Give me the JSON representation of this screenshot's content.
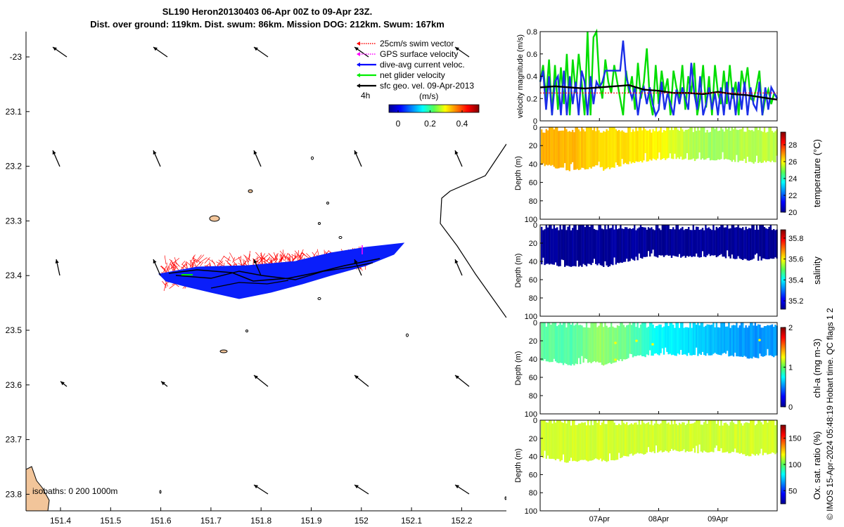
{
  "title": {
    "line1": "SL190 Heron20130403 06-Apr 00Z to 09-Apr 23Z.",
    "line2": "Dist. over ground: 119km. Dist. swum: 86km. Mission DOG: 212km. Swum: 167km"
  },
  "map": {
    "legend": [
      {
        "label": "25cm/s swim vector",
        "color": "#ff0000",
        "style": "dotted"
      },
      {
        "label": "GPS surface velocity",
        "color": "#ff00ff",
        "style": "dotted"
      },
      {
        "label": "dive-avg current veloc.",
        "color": "#0000ff",
        "style": "solid"
      },
      {
        "label": "net glider velocity",
        "color": "#00ee00",
        "style": "solid"
      },
      {
        "label": "sfc geo. vel. 09-Apr-2013",
        "color": "#000000",
        "style": "solid"
      }
    ],
    "scale_label": "4h",
    "colorbar_unit": "(m/s)",
    "colorbar_ticks": [
      "0",
      "0.2",
      "0.4"
    ],
    "isobaths_label": "isobaths: 0   200  1000m",
    "x_ticks": [
      "151.4",
      "151.5",
      "151.6",
      "151.7",
      "151.8",
      "151.9",
      "152",
      "152.1",
      "152.2"
    ],
    "y_ticks": [
      "-23",
      "23.1",
      "23.2",
      "23.3",
      "23.4",
      "23.5",
      "23.6",
      "23.7",
      "23.8"
    ]
  },
  "chart_data": [
    {
      "type": "line",
      "title": "",
      "ylabel": "velocity magnitude (m/s)",
      "ylim": [
        0,
        0.8
      ],
      "y_ticks": [
        "0",
        "0.2",
        "0.4",
        "0.6",
        "0.8"
      ],
      "x_range_days": [
        6,
        10
      ],
      "series": [
        {
          "name": "net glider velocity",
          "color": "#00dd00",
          "x": [
            6.0,
            6.05,
            6.1,
            6.15,
            6.2,
            6.25,
            6.3,
            6.35,
            6.4,
            6.45,
            6.5,
            6.55,
            6.6,
            6.65,
            6.7,
            6.75,
            6.8,
            6.85,
            6.9,
            6.95,
            7.0,
            7.05,
            7.1,
            7.15,
            7.2,
            7.25,
            7.3,
            7.35,
            7.4,
            7.45,
            7.5,
            7.55,
            7.6,
            7.65,
            7.7,
            7.75,
            7.8,
            7.85,
            7.9,
            7.95,
            8.0,
            8.05,
            8.1,
            8.15,
            8.2,
            8.25,
            8.3,
            8.35,
            8.4,
            8.45,
            8.5,
            8.55,
            8.6,
            8.65,
            8.7,
            8.75,
            8.8,
            8.85,
            8.9,
            8.95,
            9.0,
            9.05,
            9.1,
            9.15,
            9.2,
            9.25,
            9.3,
            9.35,
            9.4,
            9.45,
            9.5,
            9.55,
            9.6,
            9.65,
            9.7,
            9.75,
            9.8,
            9.85,
            9.9,
            9.95,
            10.0
          ],
          "values": [
            0.35,
            0.5,
            0.2,
            0.55,
            0.05,
            0.5,
            0.1,
            0.48,
            0.15,
            0.6,
            0.05,
            0.55,
            0.25,
            0.6,
            0.35,
            0.05,
            0.8,
            0.05,
            0.75,
            0.8,
            0.35,
            0.2,
            0.55,
            0.35,
            0.25,
            0.5,
            0.35,
            0.2,
            0.05,
            0.45,
            0.25,
            0.4,
            0.1,
            0.52,
            0.2,
            0.35,
            0.65,
            0.2,
            0.05,
            0.5,
            0.15,
            0.45,
            0.25,
            0.38,
            0.05,
            0.45,
            0.3,
            0.2,
            0.5,
            0.1,
            0.4,
            0.25,
            0.52,
            0.05,
            0.2,
            0.5,
            0.12,
            0.4,
            0.05,
            0.5,
            0.25,
            0.15,
            0.45,
            0.15,
            0.5,
            0.2,
            0.35,
            0.05,
            0.45,
            0.3,
            0.48,
            0.2,
            0.18,
            0.3,
            0.45,
            0.05,
            0.2,
            0.28,
            0.15,
            0.25,
            0.2
          ]
        },
        {
          "name": "dive-avg current veloc.",
          "color": "#1a2ee8",
          "x": [
            6.0,
            6.05,
            6.1,
            6.15,
            6.2,
            6.25,
            6.3,
            6.35,
            6.4,
            6.45,
            6.5,
            6.55,
            6.6,
            6.65,
            6.7,
            6.75,
            6.8,
            6.85,
            6.9,
            6.95,
            7.0,
            7.05,
            7.1,
            7.15,
            7.2,
            7.25,
            7.3,
            7.35,
            7.4,
            7.45,
            7.5,
            7.55,
            7.6,
            7.65,
            7.7,
            7.75,
            7.8,
            7.85,
            7.9,
            7.95,
            8.0,
            8.05,
            8.1,
            8.15,
            8.2,
            8.25,
            8.3,
            8.35,
            8.4,
            8.45,
            8.5,
            8.55,
            8.6,
            8.65,
            8.7,
            8.75,
            8.8,
            8.85,
            8.9,
            8.95,
            9.0,
            9.05,
            9.1,
            9.15,
            9.2,
            9.25,
            9.3,
            9.35,
            9.4,
            9.45,
            9.5,
            9.55,
            9.6,
            9.65,
            9.7,
            9.75,
            9.8,
            9.85,
            9.9,
            9.95,
            10.0
          ],
          "values": [
            0.35,
            0.45,
            0.1,
            0.4,
            0.05,
            0.35,
            0.4,
            0.05,
            0.45,
            0.05,
            0.4,
            0.15,
            0.35,
            0.05,
            0.45,
            0.35,
            0.05,
            0.4,
            0.15,
            0.35,
            0.3,
            0.35,
            0.45,
            0.45,
            0.45,
            0.45,
            0.45,
            0.45,
            0.72,
            0.4,
            0.3,
            0.2,
            0.3,
            0.05,
            0.25,
            0.3,
            0.15,
            0.3,
            0.15,
            0.05,
            0.1,
            0.35,
            0.1,
            0.25,
            0.15,
            0.05,
            0.28,
            0.15,
            0.3,
            0.2,
            0.1,
            0.52,
            0.25,
            0.1,
            0.4,
            0.05,
            0.15,
            0.3,
            0.1,
            0.25,
            0.05,
            0.3,
            0.05,
            0.35,
            0.1,
            0.3,
            0.05,
            0.35,
            0.1,
            0.35,
            0.05,
            0.3,
            0.15,
            0.1,
            0.35,
            0.05,
            0.3,
            0.1,
            0.3,
            0.25,
            0.2
          ]
        },
        {
          "name": "sfc geo. vel.",
          "color": "#000000",
          "x": [
            6.0,
            6.25,
            6.5,
            6.75,
            7.0,
            7.25,
            7.5,
            7.75,
            8.0,
            8.25,
            8.5,
            8.75,
            9.0,
            9.25,
            9.5,
            9.75,
            10.0
          ],
          "values": [
            0.3,
            0.31,
            0.3,
            0.29,
            0.3,
            0.31,
            0.32,
            0.28,
            0.27,
            0.25,
            0.25,
            0.24,
            0.26,
            0.24,
            0.23,
            0.21,
            0.19
          ]
        },
        {
          "name": "25cm/s swim vector",
          "color": "#ff0000",
          "x": [
            6.0,
            10.0
          ],
          "values": [
            0.25,
            0.25
          ]
        }
      ]
    },
    {
      "type": "heatmap",
      "ylabel": "Depth (m)",
      "colorbar_label": "temperature (°C)",
      "colorbar_ticks": [
        "20",
        "22",
        "24",
        "26",
        "28"
      ],
      "clim": [
        20,
        29.5
      ],
      "ylim": [
        100,
        0
      ],
      "y_ticks": [
        "0",
        "20",
        "40",
        "60",
        "80",
        "100"
      ],
      "x_range_days": [
        6,
        10
      ],
      "max_depth_x": [
        6.0,
        6.5,
        7.0,
        7.05,
        7.5,
        8.0,
        8.5,
        9.0,
        9.5,
        10.0
      ],
      "max_depth_m": [
        42,
        48,
        44,
        48,
        40,
        36,
        37,
        36,
        40,
        38
      ],
      "segments_x": [
        6.0,
        6.5,
        7.0,
        7.5,
        8.0,
        8.5,
        9.0,
        9.5,
        10.0
      ],
      "segment_values": [
        26.8,
        26.6,
        26.3,
        26.2,
        26.0,
        25.3,
        25.0,
        25.3
      ]
    },
    {
      "type": "heatmap",
      "ylabel": "Depth (m)",
      "colorbar_label": "salinity",
      "colorbar_ticks": [
        "35.2",
        "35.4",
        "35.6",
        "35.8"
      ],
      "clim": [
        35.12,
        35.88
      ],
      "ylim": [
        100,
        0
      ],
      "y_ticks": [
        "0",
        "20",
        "40",
        "60",
        "80",
        "100"
      ],
      "x_range_days": [
        6,
        10
      ],
      "max_depth_x": [
        6.0,
        6.5,
        7.0,
        7.05,
        7.5,
        8.0,
        8.5,
        9.0,
        9.5,
        10.0
      ],
      "max_depth_m": [
        44,
        48,
        44,
        48,
        40,
        36,
        37,
        36,
        40,
        38
      ],
      "segments_x": [
        6.0,
        10.0
      ],
      "segment_values": [
        35.14
      ]
    },
    {
      "type": "heatmap",
      "ylabel": "Depth (m)",
      "colorbar_label": "chl-a (mg m-3)",
      "colorbar_ticks": [
        "0",
        "1",
        "2"
      ],
      "clim": [
        0,
        2
      ],
      "ylim": [
        100,
        0
      ],
      "y_ticks": [
        "0",
        "20",
        "40",
        "60",
        "80",
        "100"
      ],
      "x_range_days": [
        6,
        10
      ],
      "max_depth_x": [
        6.0,
        6.5,
        7.0,
        7.05,
        7.5,
        8.0,
        8.5,
        9.0,
        9.5,
        10.0
      ],
      "max_depth_m": [
        42,
        48,
        44,
        48,
        40,
        36,
        37,
        36,
        40,
        38
      ],
      "segments_x": [
        6.0,
        6.5,
        7.0,
        7.5,
        8.0,
        8.5,
        9.0,
        9.5,
        10.0
      ],
      "segment_values": [
        0.95,
        0.9,
        1.05,
        0.95,
        0.75,
        0.7,
        0.6,
        0.55
      ]
    },
    {
      "type": "heatmap",
      "ylabel": "Depth (m)",
      "colorbar_label": "Ox. sat. ratio (%)",
      "colorbar_ticks": [
        "50",
        "100",
        "150"
      ],
      "clim": [
        25,
        175
      ],
      "ylim": [
        100,
        0
      ],
      "y_ticks": [
        "0",
        "20",
        "40",
        "60",
        "80",
        "100"
      ],
      "x_range_days": [
        6,
        10
      ],
      "x_ticks": [
        {
          "day": 7,
          "label": "07Apr"
        },
        {
          "day": 8,
          "label": "08Apr"
        },
        {
          "day": 9,
          "label": "09Apr"
        }
      ],
      "max_depth_x": [
        6.0,
        6.5,
        7.0,
        7.05,
        7.5,
        8.0,
        8.5,
        9.0,
        9.5,
        10.0
      ],
      "max_depth_m": [
        42,
        48,
        44,
        48,
        40,
        36,
        37,
        36,
        40,
        38
      ],
      "segments_x": [
        6.0,
        10.0
      ],
      "segment_values": [
        112
      ]
    }
  ],
  "side_note": "© IMOS 15-Apr-2024 05:48:19 Hobart time. QC flags 1  2",
  "colors": {
    "track_blue": "#0a1efa",
    "swim_red": "#ff0000",
    "land": "#f2c59a",
    "axes": "#000000"
  }
}
